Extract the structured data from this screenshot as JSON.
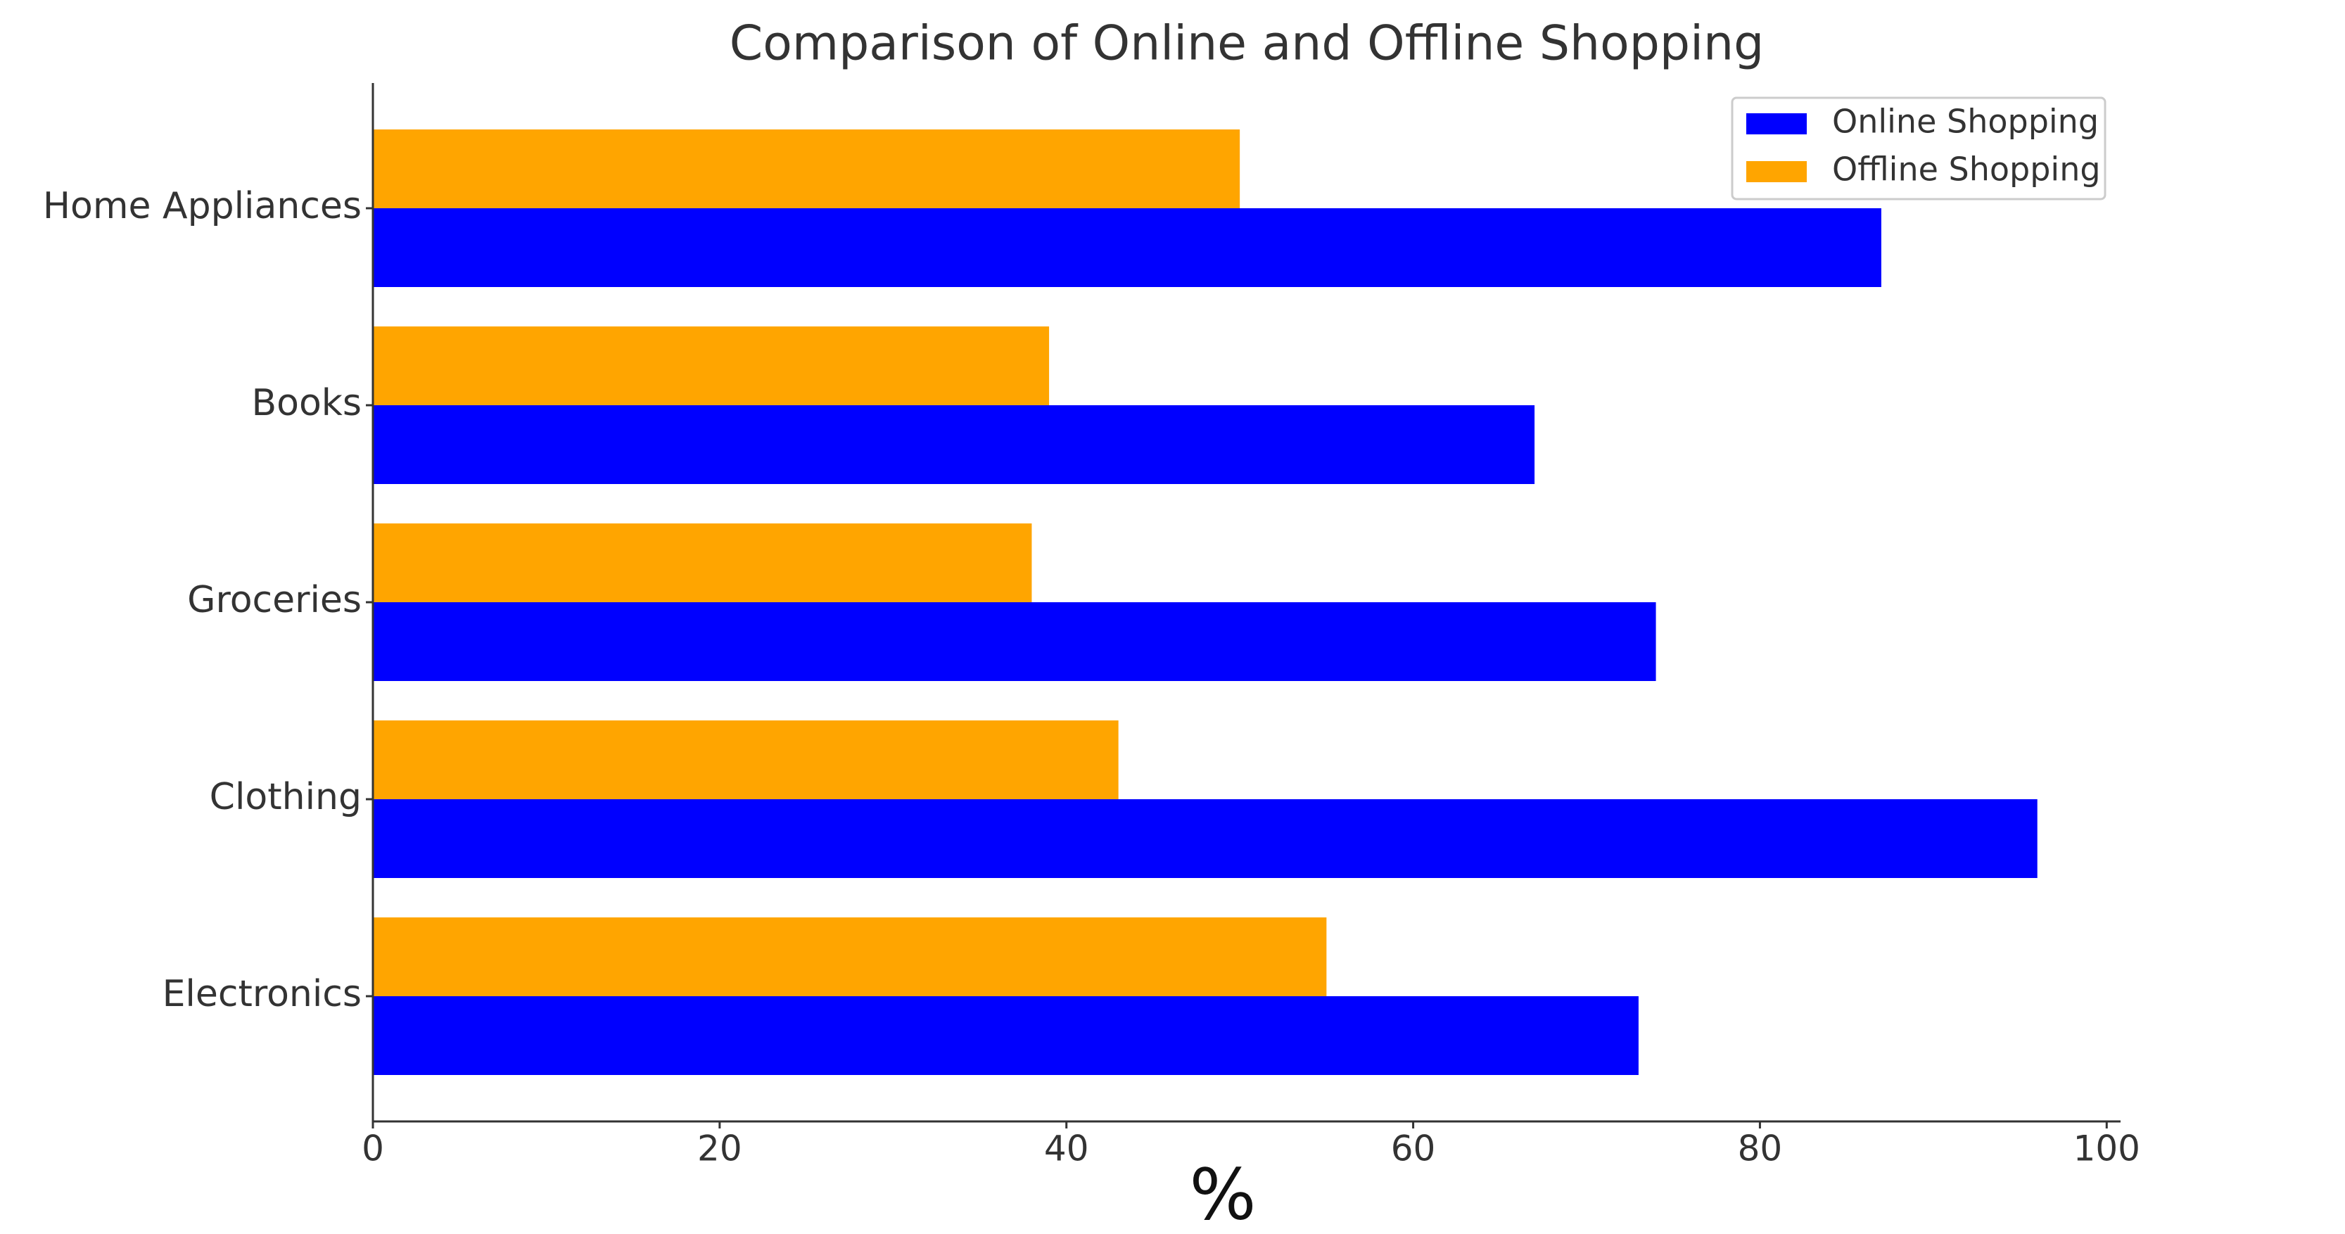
{
  "chart_data": {
    "type": "bar",
    "orientation": "horizontal",
    "title": "Comparison of Online and Offline Shopping",
    "xlabel": "%",
    "categories": [
      "Electronics",
      "Clothing",
      "Groceries",
      "Books",
      "Home Appliances"
    ],
    "series": [
      {
        "name": "Online Shopping",
        "color": "#0000ff",
        "values": [
          73,
          96,
          74,
          67,
          87
        ]
      },
      {
        "name": "Offline Shopping",
        "color": "#ffa500",
        "values": [
          55,
          43,
          38,
          39,
          50
        ]
      }
    ],
    "xlim": [
      0,
      100.8
    ],
    "xticks": [
      0,
      20,
      40,
      60,
      80,
      100
    ],
    "legend": "upper right",
    "grid": false
  }
}
